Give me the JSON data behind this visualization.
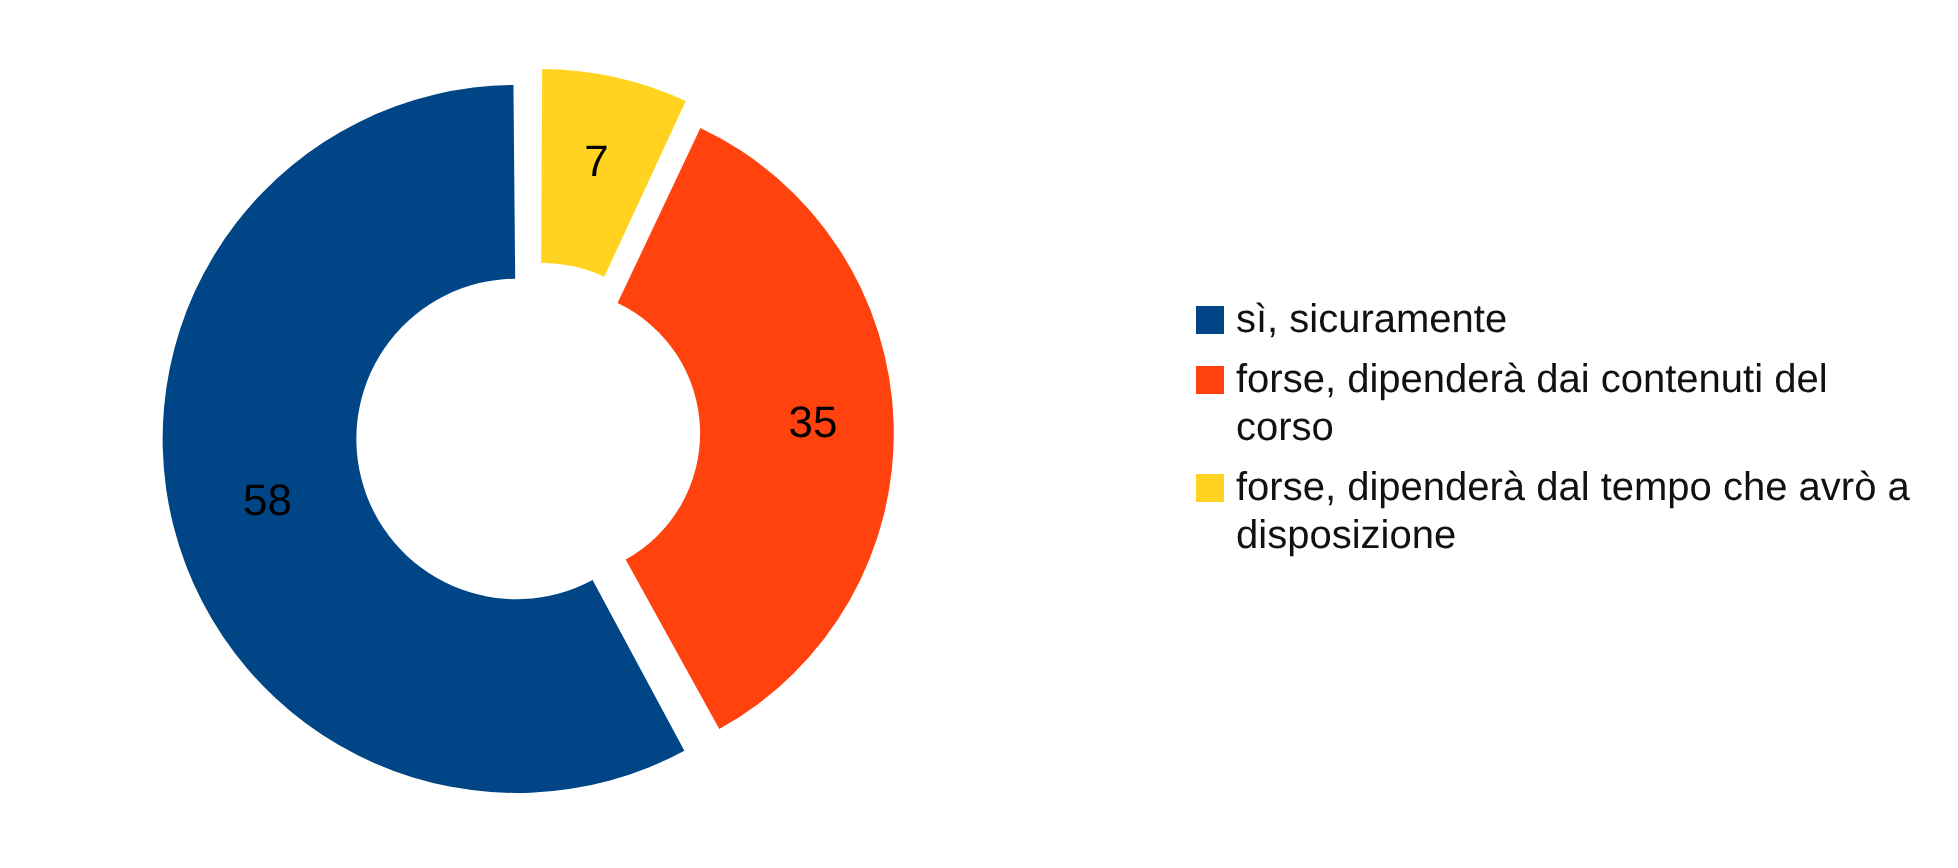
{
  "chart_data": {
    "type": "donut",
    "categories": [
      "sì, sicuramente",
      "forse, dipenderà dai contenuti del corso",
      "forse, dipenderà dal tempo che avrò a disposizione"
    ],
    "values": [
      58,
      35,
      7
    ],
    "colors": [
      "#004586",
      "#ff420e",
      "#ffd320"
    ],
    "data_labels": true,
    "legend": "right"
  }
}
